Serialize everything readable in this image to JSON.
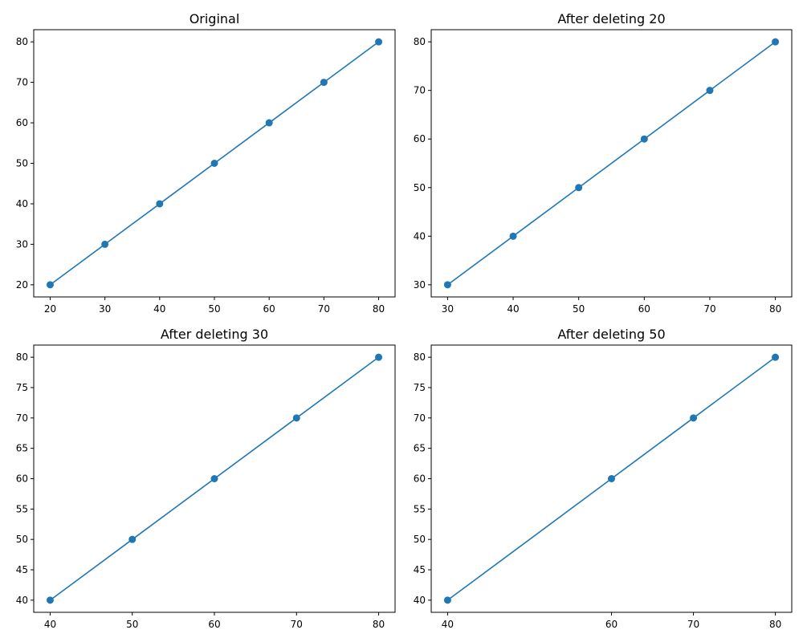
{
  "style": {
    "line_color": "#1f77b4",
    "marker": "circle"
  },
  "chart_data": [
    {
      "type": "line",
      "title": "Original",
      "x": [
        20,
        30,
        40,
        50,
        60,
        70,
        80
      ],
      "y": [
        20,
        30,
        40,
        50,
        60,
        70,
        80
      ],
      "xlim": [
        17,
        83
      ],
      "ylim": [
        17,
        83
      ],
      "xticks": [
        20,
        30,
        40,
        50,
        60,
        70,
        80
      ],
      "yticks": [
        20,
        30,
        40,
        50,
        60,
        70,
        80
      ],
      "grid": false
    },
    {
      "type": "line",
      "title": "After deleting 20",
      "x": [
        30,
        40,
        50,
        60,
        70,
        80
      ],
      "y": [
        30,
        40,
        50,
        60,
        70,
        80
      ],
      "xlim": [
        27.5,
        82.5
      ],
      "ylim": [
        27.5,
        82.5
      ],
      "xticks": [
        30,
        40,
        50,
        60,
        70,
        80
      ],
      "yticks": [
        30,
        40,
        50,
        60,
        70,
        80
      ],
      "grid": false
    },
    {
      "type": "line",
      "title": "After deleting 30",
      "x": [
        40,
        50,
        60,
        70,
        80
      ],
      "y": [
        40,
        50,
        60,
        70,
        80
      ],
      "xlim": [
        38,
        82
      ],
      "ylim": [
        38,
        82
      ],
      "xticks": [
        40,
        50,
        60,
        70,
        80
      ],
      "yticks": [
        40,
        45,
        50,
        55,
        60,
        65,
        70,
        75,
        80
      ],
      "grid": false
    },
    {
      "type": "line",
      "title": "After deleting 50",
      "x": [
        40,
        60,
        70,
        80
      ],
      "y": [
        40,
        60,
        70,
        80
      ],
      "xlim": [
        38,
        82
      ],
      "ylim": [
        38,
        82
      ],
      "xticks": [
        40,
        60,
        70,
        80
      ],
      "yticks": [
        40,
        45,
        50,
        55,
        60,
        65,
        70,
        75,
        80
      ],
      "grid": false
    }
  ]
}
